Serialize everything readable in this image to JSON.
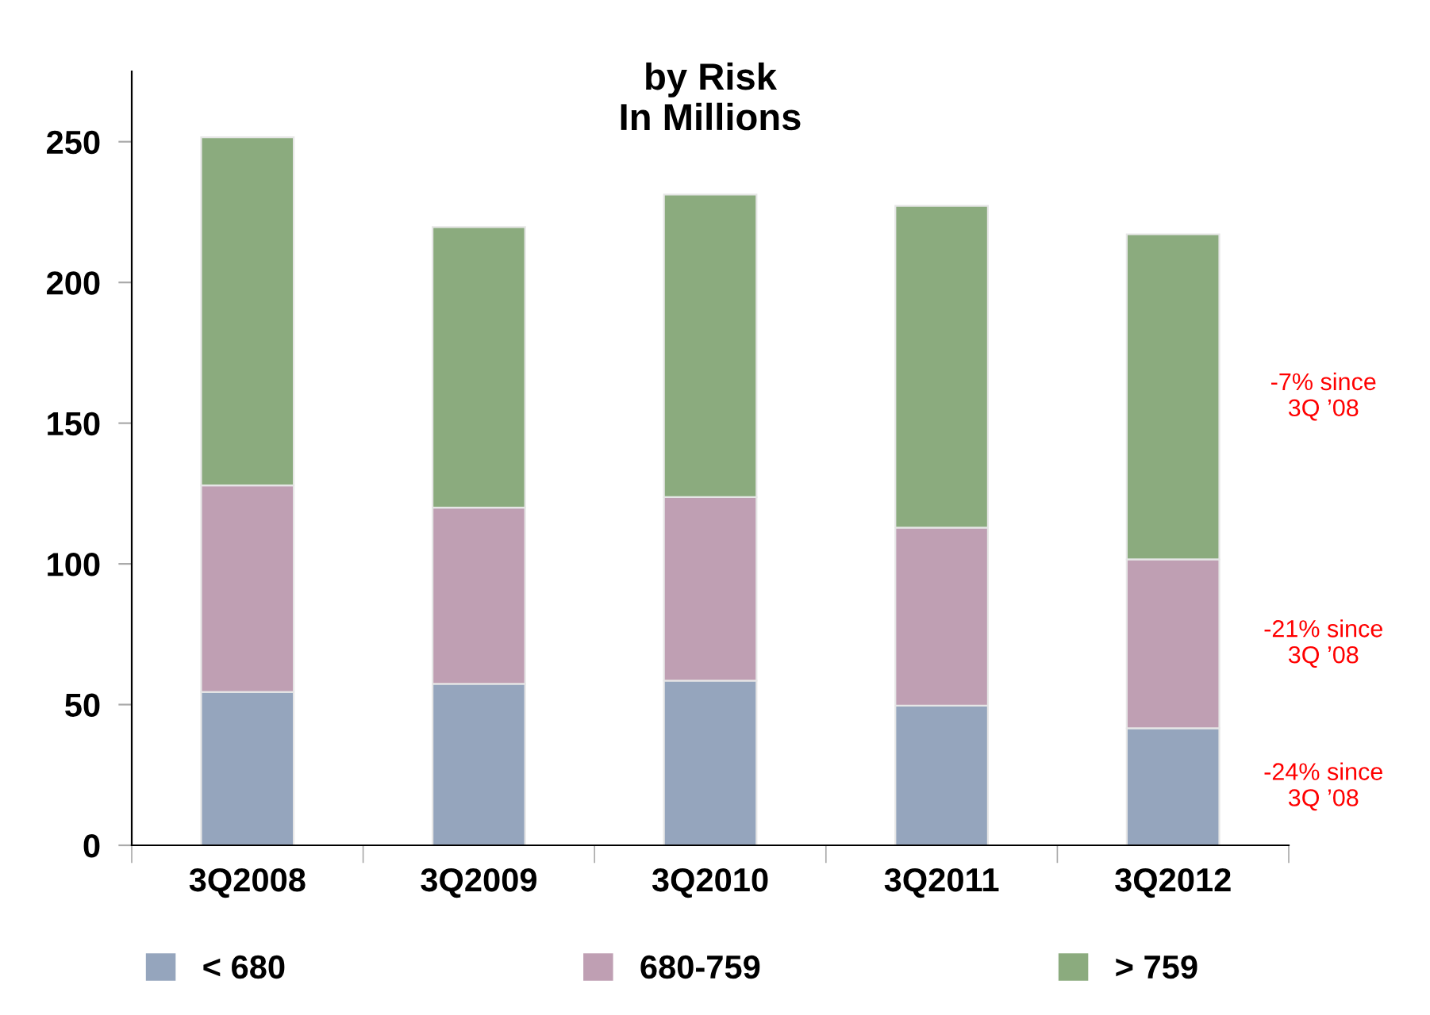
{
  "chart_data": {
    "type": "bar",
    "stacked": true,
    "title": "by Risk\nIn Millions",
    "categories": [
      "3Q2008",
      "3Q2009",
      "3Q2010",
      "3Q2011",
      "3Q2012"
    ],
    "series": [
      {
        "name": "< 680",
        "color": "#95a5bd",
        "values": [
          54.5,
          57.4,
          58.5,
          49.6,
          41.6
        ]
      },
      {
        "name": "680-759",
        "color": "#bf9fb3",
        "values": [
          73.4,
          62.6,
          65.2,
          63.3,
          60.0
        ]
      },
      {
        "name": "> 759",
        "color": "#8bab7e",
        "values": [
          123.7,
          99.7,
          107.5,
          114.3,
          115.5
        ]
      }
    ],
    "ylim": [
      0,
      275
    ],
    "yticks": [
      0,
      50,
      100,
      150,
      200,
      250
    ],
    "grid": false,
    "legend": "bottom",
    "annotations": [
      "-7% since\n3Q ’08",
      "-21% since\n3Q ’08",
      "-24% since\n3Q ’08"
    ]
  }
}
